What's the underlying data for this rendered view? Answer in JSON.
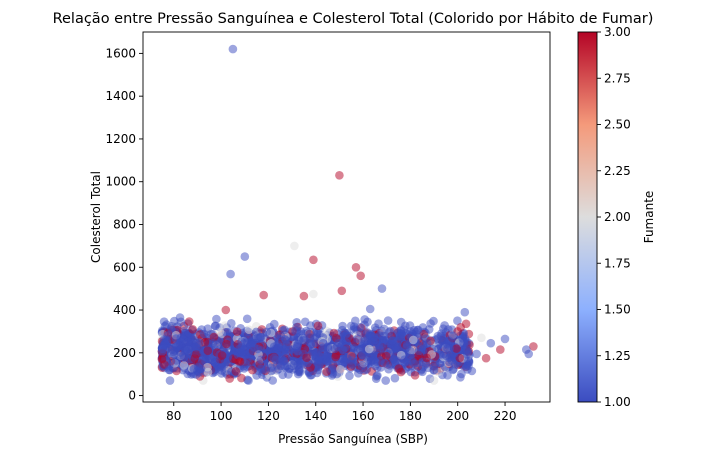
{
  "chart_data": {
    "type": "scatter",
    "title": "Relação entre Pressão Sanguínea e Colesterol Total (Colorido por Hábito de Fumar)",
    "xlabel": "Pressão Sanguínea (SBP)",
    "ylabel": "Colesterol Total",
    "colorbar_label": "Fumante",
    "xlim": [
      67,
      239
    ],
    "ylim": [
      -30,
      1700
    ],
    "xticks": [
      80,
      100,
      120,
      140,
      160,
      180,
      200,
      220
    ],
    "yticks": [
      0,
      200,
      400,
      600,
      800,
      1000,
      1200,
      1400,
      1600
    ],
    "color_range": [
      1.0,
      3.0
    ],
    "colorbar_ticks": [
      "1.00",
      "1.25",
      "1.50",
      "1.75",
      "2.00",
      "2.25",
      "2.50",
      "2.75",
      "3.00"
    ],
    "colormap": [
      "#3b4cc0",
      "#dddddd",
      "#b40426"
    ],
    "marker_alpha": 0.5,
    "grid": false,
    "points": [
      {
        "x": 105,
        "y": 1620,
        "c": 1
      },
      {
        "x": 150,
        "y": 1030,
        "c": 3
      },
      {
        "x": 110,
        "y": 650,
        "c": 1
      },
      {
        "x": 131,
        "y": 700,
        "c": 2
      },
      {
        "x": 104,
        "y": 568,
        "c": 1
      },
      {
        "x": 139,
        "y": 635,
        "c": 3
      },
      {
        "x": 157,
        "y": 600,
        "c": 3
      },
      {
        "x": 159,
        "y": 560,
        "c": 3
      },
      {
        "x": 168,
        "y": 500,
        "c": 1
      },
      {
        "x": 151,
        "y": 490,
        "c": 3
      },
      {
        "x": 139,
        "y": 475,
        "c": 2
      },
      {
        "x": 135,
        "y": 465,
        "c": 3
      },
      {
        "x": 118,
        "y": 470,
        "c": 3
      },
      {
        "x": 163,
        "y": 405,
        "c": 1
      },
      {
        "x": 203,
        "y": 390,
        "c": 1
      },
      {
        "x": 102,
        "y": 400,
        "c": 3
      },
      {
        "x": 232,
        "y": 230,
        "c": 3
      },
      {
        "x": 229,
        "y": 215,
        "c": 1
      },
      {
        "x": 230,
        "y": 195,
        "c": 1
      },
      {
        "x": 220,
        "y": 265,
        "c": 1
      },
      {
        "x": 218,
        "y": 215,
        "c": 3
      },
      {
        "x": 214,
        "y": 245,
        "c": 1
      },
      {
        "x": 210,
        "y": 270,
        "c": 2
      },
      {
        "x": 212,
        "y": 175,
        "c": 3
      },
      {
        "x": 206,
        "y": 115,
        "c": 1
      },
      {
        "x": 208,
        "y": 195,
        "c": 1
      },
      {
        "x": 200,
        "y": 300,
        "c": 3
      },
      {
        "x": 198,
        "y": 280,
        "c": 1
      },
      {
        "x": 75,
        "y": 205,
        "c": 1
      },
      {
        "x": 75,
        "y": 170,
        "c": 3
      },
      {
        "x": 76,
        "y": 145,
        "c": 3
      },
      {
        "x": 78,
        "y": 120,
        "c": 1
      },
      {
        "x": 83,
        "y": 345,
        "c": 1
      },
      {
        "x": 88,
        "y": 310,
        "c": 3
      },
      {
        "x": 182,
        "y": 95,
        "c": 3
      },
      {
        "x": 176,
        "y": 110,
        "c": 3
      },
      {
        "x": 190,
        "y": 120,
        "c": 1
      }
    ],
    "cluster": {
      "count": 2600,
      "x_min": 75,
      "x_max": 205,
      "y_mode": 210,
      "y_low": 70,
      "y_high": 420,
      "share_blue": 0.74,
      "share_red": 0.18
    }
  }
}
